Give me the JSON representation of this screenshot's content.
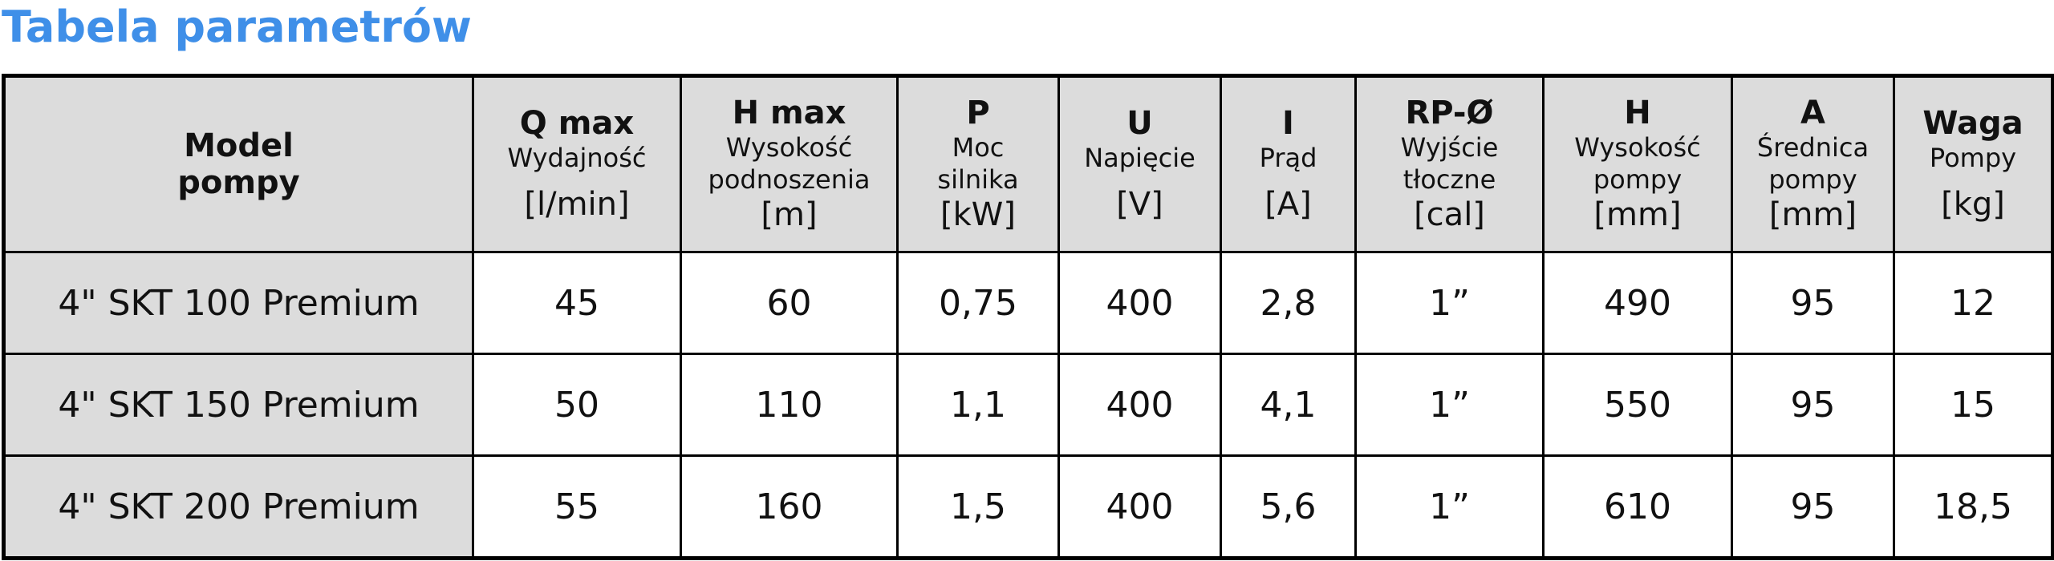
{
  "header": {
    "title": "Tabela parametrów"
  },
  "table": {
    "columns": [
      {
        "name": [
          "Model",
          "pompy"
        ],
        "desc": [],
        "unit": null
      },
      {
        "name": [
          "Q max"
        ],
        "desc": [
          "Wydajność"
        ],
        "unit": "[l/min]"
      },
      {
        "name": [
          "H max"
        ],
        "desc": [
          "Wysokość",
          "podnoszenia"
        ],
        "unit": "[m]"
      },
      {
        "name": [
          "P"
        ],
        "desc": [
          "Moc",
          "silnika"
        ],
        "unit": "[kW]"
      },
      {
        "name": [
          "U"
        ],
        "desc": [
          "Napięcie"
        ],
        "unit": "[V]"
      },
      {
        "name": [
          "I"
        ],
        "desc": [
          "Prąd"
        ],
        "unit": "[A]"
      },
      {
        "name": [
          "RP-Ø"
        ],
        "desc": [
          "Wyjście",
          "tłoczne"
        ],
        "unit": "[cal]"
      },
      {
        "name": [
          "H"
        ],
        "desc": [
          "Wysokość",
          "pompy"
        ],
        "unit": "[mm]"
      },
      {
        "name": [
          "A"
        ],
        "desc": [
          "Średnica",
          "pompy"
        ],
        "unit": "[mm]"
      },
      {
        "name": [
          "Waga"
        ],
        "desc": [
          "Pompy"
        ],
        "unit": "[kg]"
      }
    ],
    "rows": [
      [
        "4\" SKT 100 Premium",
        "45",
        "60",
        "0,75",
        "400",
        "2,8",
        "1”",
        "490",
        "95",
        "12"
      ],
      [
        "4\" SKT 150 Premium",
        "50",
        "110",
        "1,1",
        "400",
        "4,1",
        "1”",
        "550",
        "95",
        "15"
      ],
      [
        "4\" SKT 200 Premium",
        "55",
        "160",
        "1,5",
        "400",
        "5,6",
        "1”",
        "610",
        "95",
        "18,5"
      ]
    ]
  }
}
